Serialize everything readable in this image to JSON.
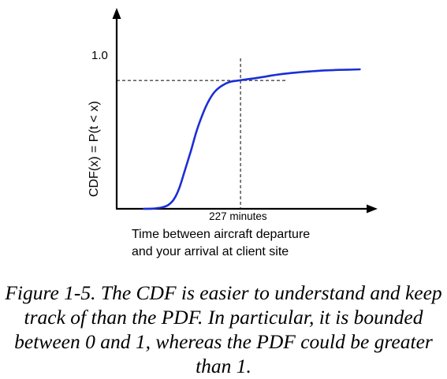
{
  "chart_data": {
    "type": "line",
    "title": "",
    "ylabel": "CDF(x) = P(t < x)",
    "xlabel_lines": [
      "Time between aircraft departure",
      "and your arrival at client site"
    ],
    "y_tick_label": "1.0",
    "x_marker_label": "227 minutes",
    "line_color": "#1a2fd6",
    "ylim": [
      0,
      1
    ],
    "grid": false,
    "legend": "none",
    "series": [
      {
        "x": [
          0.18,
          0.23,
          0.27,
          0.31,
          0.345,
          0.38,
          0.415,
          0.45,
          0.49,
          0.53,
          0.57,
          0.61,
          0.65,
          0.7,
          0.75,
          0.8,
          0.86,
          0.92,
          0.97,
          1.01,
          1.05,
          1.1,
          1.16,
          1.22,
          1.28,
          1.34,
          1.4,
          1.47,
          1.54,
          1.61
        ],
        "y": [
          0.0,
          0.001,
          0.005,
          0.013,
          0.03,
          0.07,
          0.15,
          0.27,
          0.41,
          0.56,
          0.68,
          0.775,
          0.84,
          0.885,
          0.91,
          0.919,
          0.928,
          0.937,
          0.945,
          0.953,
          0.96,
          0.967,
          0.974,
          0.98,
          0.985,
          0.99,
          0.993,
          0.996,
          0.998,
          1.0
        ]
      }
    ],
    "reference_point": {
      "x": 0.82,
      "y": 0.92
    }
  },
  "caption": "Figure 1-5. The CDF is easier to understand and keep track of than the PDF. In particular, it is bounded between 0 and 1, whereas the PDF could be greater than 1."
}
